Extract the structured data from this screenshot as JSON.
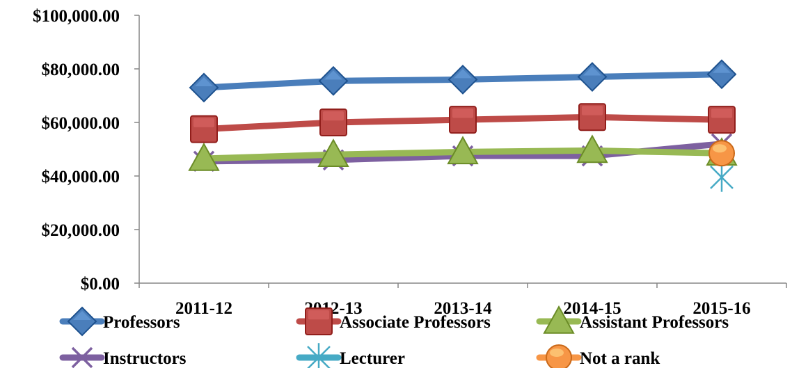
{
  "chart_data": {
    "type": "line",
    "title": "",
    "xlabel": "",
    "ylabel": "",
    "categories": [
      "2011-12",
      "2012-13",
      "2013-14",
      "2014-15",
      "2015-16"
    ],
    "ylim": [
      0,
      100000
    ],
    "y_ticks": [
      0,
      20000,
      40000,
      60000,
      80000,
      100000
    ],
    "y_tick_labels": [
      "$0.00",
      "$20,000.00",
      "$40,000.00",
      "$60,000.00",
      "$80,000.00",
      "$100,000.00"
    ],
    "grid": false,
    "legend_position": "bottom",
    "series": [
      {
        "name": "Professors",
        "color": "#4a7ebb",
        "marker": "diamond",
        "values": [
          73000,
          75500,
          76000,
          77000,
          78000
        ]
      },
      {
        "name": "Associate Professors",
        "color": "#be4b48",
        "marker": "square",
        "values": [
          57500,
          60000,
          61000,
          62000,
          61000
        ]
      },
      {
        "name": "Assistant Professors",
        "color": "#98b954",
        "marker": "triangle",
        "values": [
          46500,
          48000,
          49000,
          49500,
          48500
        ]
      },
      {
        "name": "Instructors",
        "color": "#7d60a0",
        "marker": "x",
        "values": [
          45500,
          46000,
          47500,
          47500,
          52000
        ]
      },
      {
        "name": "Lecturer",
        "color": "#46aac5",
        "marker": "star",
        "values": [
          null,
          null,
          null,
          null,
          39500
        ]
      },
      {
        "name": "Not a rank",
        "color": "#f79646",
        "marker": "circle",
        "values": [
          null,
          null,
          null,
          null,
          48500
        ]
      }
    ]
  }
}
